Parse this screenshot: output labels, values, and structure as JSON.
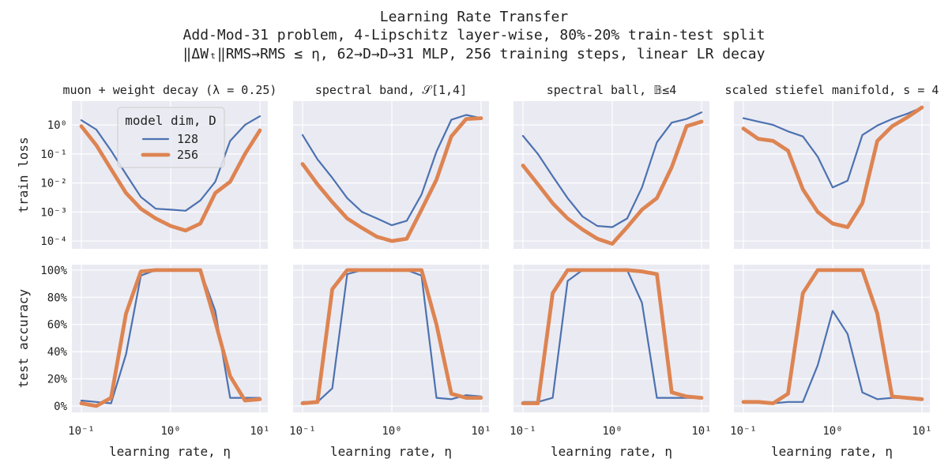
{
  "chart_data": {
    "type": "line",
    "title": "Learning Rate Transfer",
    "subtitle_lines": [
      "Add-Mod-31 problem, 4-Lipschitz layer-wise, 80%-20% train-test split",
      "‖ΔWₜ‖RMS→RMS ≤ η, 62→D→D→31 MLP, 256 training steps, linear LR decay"
    ],
    "x": [
      0.1,
      0.147,
      0.215,
      0.316,
      0.464,
      0.681,
      1,
      1.47,
      2.15,
      3.16,
      4.64,
      6.81,
      10
    ],
    "xscale": "log",
    "xlim": [
      0.1,
      10
    ],
    "xlabel": "learning rate, η",
    "xticks": [
      "10⁻¹",
      "10⁰",
      "10¹"
    ],
    "legend": {
      "title": "model dim, D",
      "entries": [
        "128",
        "256"
      ],
      "placement": "upper-center of first panel"
    },
    "colors": {
      "128": "#4c72b0",
      "256": "#dd8452"
    },
    "rows": [
      {
        "ylabel": "train loss",
        "yscale": "log",
        "ylim": [
          5.37e-05,
          6.6
        ],
        "yticks": [
          "10⁰",
          "10⁻¹",
          "10⁻²",
          "10⁻³",
          "10⁻⁴"
        ]
      },
      {
        "ylabel": "test accuracy",
        "yscale": "linear",
        "ylim": [
          -4.7,
          104
        ],
        "yticks": [
          "100%",
          "80%",
          "60%",
          "40%",
          "20%",
          "0%"
        ]
      }
    ],
    "panels": [
      {
        "title": "muon + weight decay (λ = 0.25)",
        "train_loss": {
          "128": [
            1.45,
            0.69,
            0.13,
            0.02,
            0.0033,
            0.0013,
            0.0012,
            0.0011,
            0.0025,
            0.011,
            0.28,
            1.0,
            2.0
          ],
          "256": [
            0.9,
            0.2,
            0.03,
            0.0045,
            0.0013,
            0.0006,
            0.00033,
            0.00023,
            0.0004,
            0.0045,
            0.011,
            0.1,
            0.65
          ]
        },
        "test_accuracy": {
          "128": [
            4,
            3,
            2,
            38,
            96,
            100,
            100,
            100,
            100,
            70,
            6,
            6,
            6
          ],
          "256": [
            2,
            0,
            6,
            68,
            99,
            100,
            100,
            100,
            100,
            62,
            22,
            4,
            5
          ]
        }
      },
      {
        "title": "spectral band, 𝒮[1,4]",
        "train_loss": {
          "128": [
            0.45,
            0.065,
            0.015,
            0.003,
            0.001,
            0.0006,
            0.00035,
            0.0005,
            0.004,
            0.12,
            1.5,
            2.2,
            1.7
          ],
          "256": [
            0.045,
            0.009,
            0.0022,
            0.0006,
            0.00028,
            0.00014,
            0.0001,
            0.00012,
            0.0012,
            0.013,
            0.4,
            1.6,
            1.7
          ]
        },
        "test_accuracy": {
          "128": [
            3,
            3,
            13,
            97,
            100,
            100,
            100,
            100,
            96,
            6,
            5,
            8,
            7
          ],
          "256": [
            2,
            3,
            86,
            100,
            100,
            100,
            100,
            100,
            100,
            60,
            9,
            6,
            6
          ]
        }
      },
      {
        "title": "spectral ball, 𝔹≤4",
        "train_loss": {
          "128": [
            0.42,
            0.1,
            0.017,
            0.003,
            0.0007,
            0.00033,
            0.0003,
            0.0006,
            0.007,
            0.25,
            1.2,
            1.6,
            2.7
          ],
          "256": [
            0.04,
            0.009,
            0.002,
            0.0006,
            0.00025,
            0.00012,
            8e-05,
            0.0003,
            0.0012,
            0.003,
            0.035,
            0.9,
            1.3
          ]
        },
        "test_accuracy": {
          "128": [
            3,
            3,
            6,
            92,
            100,
            100,
            100,
            100,
            76,
            6,
            6,
            6,
            6
          ],
          "256": [
            2,
            2,
            83,
            100,
            100,
            100,
            100,
            100,
            99,
            97,
            10,
            7,
            6
          ]
        }
      },
      {
        "title": "scaled stiefel manifold, s = 4",
        "train_loss": {
          "128": [
            1.7,
            1.3,
            1.0,
            0.6,
            0.4,
            0.08,
            0.007,
            0.012,
            0.45,
            0.95,
            1.6,
            2.4,
            4.0
          ],
          "256": [
            0.75,
            0.33,
            0.28,
            0.13,
            0.006,
            0.001,
            0.0004,
            0.0003,
            0.002,
            0.28,
            0.9,
            1.8,
            4.0
          ]
        },
        "test_accuracy": {
          "128": [
            3,
            3,
            2,
            3,
            3,
            30,
            70,
            53,
            10,
            5,
            6,
            6,
            5
          ],
          "256": [
            3,
            3,
            2,
            9,
            83,
            100,
            100,
            100,
            100,
            68,
            7,
            6,
            5
          ]
        }
      }
    ]
  }
}
